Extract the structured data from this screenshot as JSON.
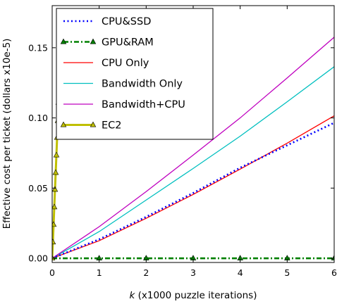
{
  "chart_data": {
    "type": "line",
    "title": "",
    "xlabel": "k (x1000 puzzle iterations)",
    "xlabel_italic_part": "k",
    "xlabel_rest": " (x1000 puzzle iterations)",
    "ylabel": "Effective cost per ticket (dollars x10e-5)",
    "xlim": [
      0,
      6
    ],
    "ylim": [
      -0.003,
      0.18
    ],
    "xticks": [
      0,
      1,
      2,
      3,
      4,
      5,
      6
    ],
    "xtick_labels": [
      "0",
      "1",
      "2",
      "3",
      "4",
      "5",
      "6"
    ],
    "yticks": [
      0.0,
      0.05,
      0.1,
      0.15
    ],
    "ytick_labels": [
      "0.00",
      "0.05",
      "0.10",
      "0.15"
    ],
    "grid": false,
    "legend_position": "top-left",
    "series": [
      {
        "name": "CPU&SSD",
        "color": "#0000ff",
        "style": "dotted",
        "x": [
          0,
          1,
          2,
          3,
          4,
          5,
          6
        ],
        "y": [
          0.0,
          0.0135,
          0.0295,
          0.0465,
          0.0645,
          0.0805,
          0.0965
        ]
      },
      {
        "name": "GPU&RAM",
        "color": "#008000",
        "style": "dashdot",
        "marker": "triangle",
        "x": [
          0,
          1,
          2,
          3,
          4,
          5,
          6
        ],
        "y": [
          0.0,
          0.0,
          0.0,
          0.0,
          0.0,
          0.0,
          0.0
        ]
      },
      {
        "name": "CPU Only",
        "color": "#ff0000",
        "style": "solid",
        "x": [
          0,
          1,
          2,
          3,
          4,
          5,
          6
        ],
        "y": [
          0.0,
          0.0125,
          0.0285,
          0.0455,
          0.0635,
          0.082,
          0.1015
        ]
      },
      {
        "name": "Bandwidth Only",
        "color": "#00bfbf",
        "style": "solid",
        "x": [
          0,
          1,
          2,
          3,
          4,
          5,
          6
        ],
        "y": [
          0.0,
          0.019,
          0.0415,
          0.064,
          0.087,
          0.1115,
          0.1365
        ]
      },
      {
        "name": "Bandwidth+CPU",
        "color": "#bf00bf",
        "style": "solid",
        "x": [
          0,
          1,
          2,
          3,
          4,
          5,
          6
        ],
        "y": [
          0.0,
          0.0225,
          0.0475,
          0.0735,
          0.1,
          0.1285,
          0.1575
        ]
      },
      {
        "name": "EC2",
        "color": "#bfbf00",
        "style": "solid",
        "marker": "triangle",
        "x": [
          0,
          0.015,
          0.03,
          0.045,
          0.06,
          0.075,
          0.09,
          0.105,
          0.12,
          0.135,
          0.15,
          0.165,
          0.18,
          0.195
        ],
        "y": [
          0.0,
          0.0115,
          0.024,
          0.0365,
          0.049,
          0.061,
          0.0735,
          0.086,
          0.098,
          0.111,
          0.123,
          0.135,
          0.1475,
          0.16
        ]
      }
    ]
  }
}
